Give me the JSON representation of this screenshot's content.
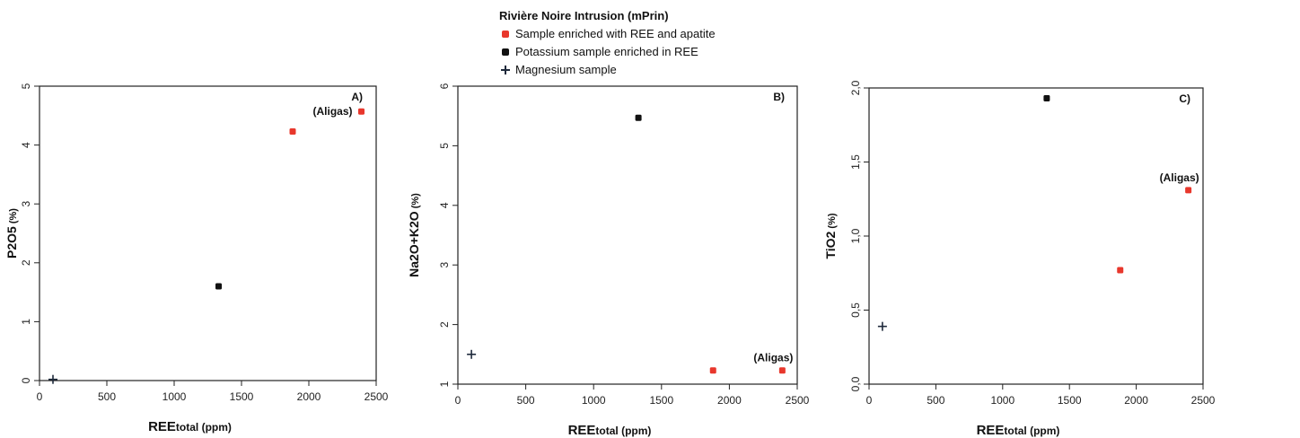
{
  "legend": {
    "title": "Rivière Noire Intrusion (mPrin)",
    "items": [
      {
        "label": "Sample enriched with REE and apatite",
        "color": "#e8372c",
        "icon": "red-square-marker"
      },
      {
        "label": "Potassium sample enriched in REE",
        "color": "#111111",
        "icon": "black-square-marker"
      },
      {
        "label": "Magnesium sample",
        "color": "#1f2a3c",
        "icon": "plus-marker"
      }
    ]
  },
  "chart_data": [
    {
      "type": "scatter",
      "panel_label": "A)",
      "xlabel_main": "REE",
      "xlabel_sub": "total (ppm)",
      "ylabel_main": "P2O5",
      "ylabel_unit": " (%)",
      "xlim": [
        0,
        2500
      ],
      "ylim": [
        0,
        5
      ],
      "xticks": [
        0,
        500,
        1000,
        1500,
        2000,
        2500
      ],
      "yticks": [
        0,
        1,
        2,
        3,
        4,
        5
      ],
      "ytick_labels": [
        "0",
        "1",
        "2",
        "3",
        "4",
        "5"
      ],
      "series": [
        {
          "marker": "square",
          "color": "#e8372c",
          "points": [
            [
              1880,
              4.23
            ],
            [
              2390,
              4.57
            ]
          ]
        },
        {
          "marker": "square",
          "color": "#111111",
          "points": [
            [
              1330,
              1.6
            ]
          ]
        },
        {
          "marker": "plus",
          "color": "#1f2a3c",
          "points": [
            [
              100,
              0.02
            ]
          ]
        }
      ],
      "annotations": [
        {
          "text": "(Aligas)",
          "x": 2390,
          "y": 4.57,
          "anchor": "left"
        }
      ]
    },
    {
      "type": "scatter",
      "panel_label": "B)",
      "xlabel_main": "REE",
      "xlabel_sub": "total (ppm)",
      "ylabel_main": "Na2O+K2O",
      "ylabel_unit": " (%)",
      "xlim": [
        0,
        2500
      ],
      "ylim": [
        1,
        6
      ],
      "xticks": [
        0,
        500,
        1000,
        1500,
        2000,
        2500
      ],
      "yticks": [
        1,
        2,
        3,
        4,
        5,
        6
      ],
      "ytick_labels": [
        "1",
        "2",
        "3",
        "4",
        "5",
        "6"
      ],
      "series": [
        {
          "marker": "square",
          "color": "#e8372c",
          "points": [
            [
              1880,
              1.23
            ],
            [
              2390,
              1.23
            ]
          ]
        },
        {
          "marker": "square",
          "color": "#111111",
          "points": [
            [
              1330,
              5.47
            ]
          ]
        },
        {
          "marker": "plus",
          "color": "#1f2a3c",
          "points": [
            [
              100,
              1.5
            ]
          ]
        }
      ],
      "annotations": [
        {
          "text": "(Aligas)",
          "x": 2390,
          "y": 1.23,
          "anchor": "above"
        }
      ]
    },
    {
      "type": "scatter",
      "panel_label": "C)",
      "xlabel_main": "REE",
      "xlabel_sub": "total (ppm)",
      "ylabel_main": "TiO2",
      "ylabel_unit": " (%)",
      "xlim": [
        0,
        2500
      ],
      "ylim": [
        0,
        2
      ],
      "xticks": [
        0,
        500,
        1000,
        1500,
        2000,
        2500
      ],
      "yticks": [
        0,
        0.5,
        1,
        1.5,
        2
      ],
      "ytick_labels": [
        "0,0",
        "0,5",
        "1,0",
        "1,5",
        "2,0"
      ],
      "series": [
        {
          "marker": "square",
          "color": "#e8372c",
          "points": [
            [
              1880,
              0.77
            ],
            [
              2390,
              1.31
            ]
          ]
        },
        {
          "marker": "square",
          "color": "#111111",
          "points": [
            [
              1330,
              1.93
            ]
          ]
        },
        {
          "marker": "plus",
          "color": "#1f2a3c",
          "points": [
            [
              100,
              0.39
            ]
          ]
        }
      ],
      "annotations": [
        {
          "text": "(Aligas)",
          "x": 2390,
          "y": 1.31,
          "anchor": "above"
        }
      ]
    }
  ]
}
